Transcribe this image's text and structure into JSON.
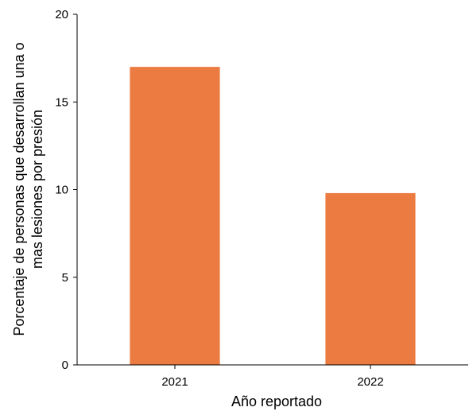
{
  "chart_data": {
    "type": "bar",
    "categories": [
      "2021",
      "2022"
    ],
    "values": [
      17.0,
      9.8
    ],
    "title": "",
    "xlabel": "Año reportado",
    "ylabel_lines": [
      "Porcentaje de personas que desarrollan una o",
      "mas lesiones por presión"
    ],
    "ylim": [
      0,
      20
    ],
    "yticks": [
      0,
      5,
      10,
      15,
      20
    ],
    "bar_color": "#eb7b40",
    "grid": false,
    "legend": "none"
  }
}
